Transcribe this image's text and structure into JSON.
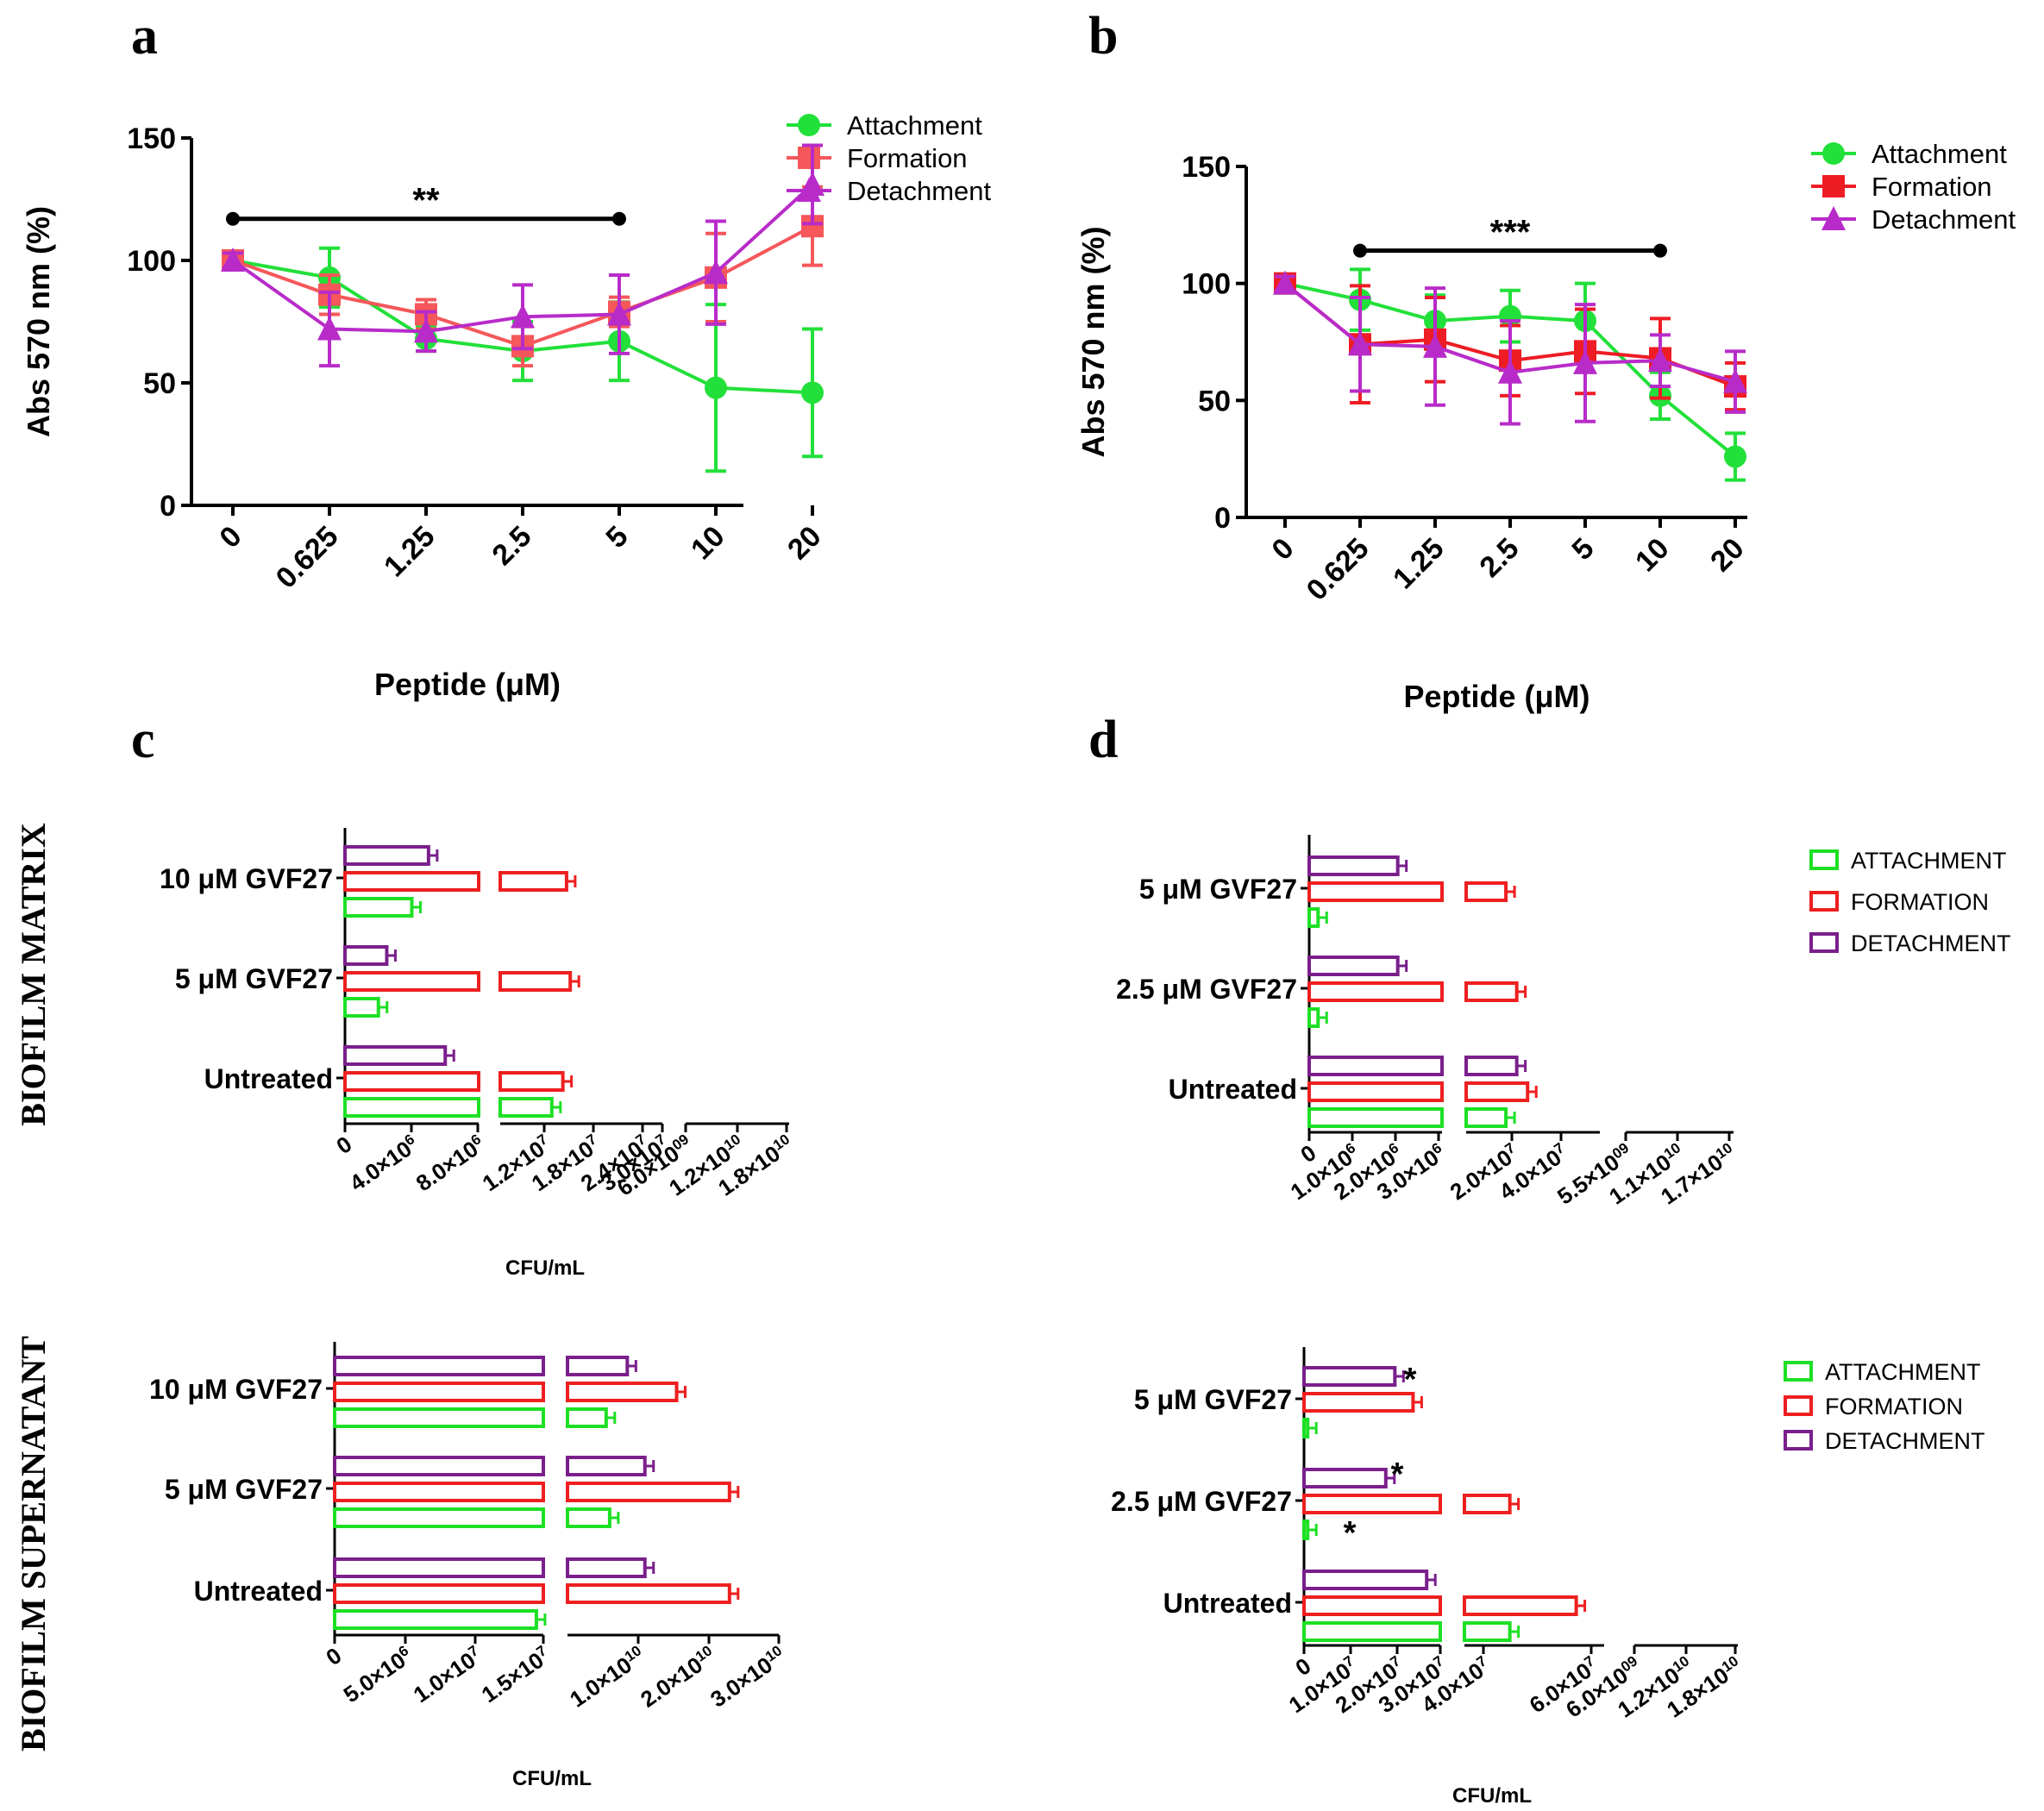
{
  "figure": {
    "panel_letters": [
      "a",
      "b",
      "c",
      "d"
    ],
    "side_labels": [
      "BIOFILM MATRIX",
      "BIOFILM SUPERNATANT"
    ],
    "colors": {
      "attachment": "#22e03a",
      "formation_a": "#f5575a",
      "formation_b": "#ee1c24",
      "detachment": "#b82bc9",
      "attachment_bar": "#1de024",
      "formation_bar": "#ee1f1f",
      "detachment_bar": "#7a1f8c"
    }
  },
  "chart_data": [
    {
      "id": "a",
      "type": "line",
      "title": "",
      "xlabel": "Peptide (μM)",
      "ylabel": "Abs 570 nm (%)",
      "categories": [
        "0",
        "0.625",
        "1.25",
        "2.5",
        "5",
        "10",
        "20"
      ],
      "ylim": [
        0,
        150
      ],
      "yticks": [
        "0",
        "50",
        "100",
        "150"
      ],
      "legend": "top-right",
      "series": [
        {
          "name": "Attachment",
          "marker": "circle",
          "values": [
            100,
            93,
            68,
            63,
            67,
            48,
            46
          ],
          "errors": [
            3,
            12,
            5,
            12,
            16,
            34,
            26
          ]
        },
        {
          "name": "Formation",
          "marker": "square",
          "values": [
            100,
            86,
            78,
            65,
            79,
            93,
            114
          ],
          "errors": [
            3,
            8,
            6,
            8,
            6,
            18,
            16
          ]
        },
        {
          "name": "Detachment",
          "marker": "triangle",
          "values": [
            100,
            72,
            71,
            77,
            78,
            95,
            131
          ],
          "errors": [
            3,
            15,
            8,
            13,
            16,
            21,
            16
          ]
        }
      ],
      "annotation": {
        "text": "**",
        "from": "0",
        "to": "5"
      }
    },
    {
      "id": "b",
      "type": "line",
      "title": "",
      "xlabel": "Peptide (μM)",
      "ylabel": "Abs 570 nm (%)",
      "categories": [
        "0",
        "0.625",
        "1.25",
        "2.5",
        "5",
        "10",
        "20"
      ],
      "ylim": [
        0,
        150
      ],
      "yticks": [
        "0",
        "50",
        "100",
        "150"
      ],
      "legend": "top-right",
      "series": [
        {
          "name": "Attachment",
          "marker": "circle",
          "values": [
            100,
            93,
            84,
            86,
            84,
            52,
            26
          ],
          "errors": [
            3,
            13,
            11,
            11,
            16,
            10,
            10
          ]
        },
        {
          "name": "Formation",
          "marker": "square",
          "values": [
            100,
            74,
            76,
            67,
            71,
            68,
            56
          ],
          "errors": [
            3,
            25,
            18,
            15,
            18,
            17,
            10
          ]
        },
        {
          "name": "Detachment",
          "marker": "triangle",
          "values": [
            100,
            74,
            73,
            62,
            66,
            67,
            58
          ],
          "errors": [
            3,
            20,
            25,
            22,
            25,
            11,
            13
          ]
        }
      ],
      "annotation": {
        "text": "***",
        "from": "0.625",
        "to": "10"
      }
    },
    {
      "id": "c-matrix",
      "type": "bar",
      "orientation": "horizontal",
      "xlabel": "CFU/mL",
      "categories": [
        "10 μM GVF27",
        "5 μM GVF27",
        "Untreated"
      ],
      "xticks": [
        [
          "0",
          "4.0×10^6",
          "8.0×10^6"
        ],
        [
          "1.2×10^7",
          "1.8×10^7",
          "2.4×10^7",
          "3.0×10^7"
        ],
        [
          "6.0×10^09",
          "1.2×10^10",
          "1.8×10^10"
        ]
      ],
      "series": [
        {
          "name": "DETACHMENT",
          "values": [
            5000000,
            2500000,
            6000000
          ]
        },
        {
          "name": "FORMATION",
          "values": [
            17000000,
            17500000,
            16500000
          ]
        },
        {
          "name": "ATTACHMENT",
          "values": [
            4000000,
            2000000,
            15000000
          ]
        }
      ]
    },
    {
      "id": "d-matrix",
      "type": "bar",
      "orientation": "horizontal",
      "xlabel": "",
      "categories": [
        "5 μM GVF27",
        "2.5 μM GVF27",
        "Untreated"
      ],
      "legend_entries": [
        "ATTACHMENT",
        "FORMATION",
        "DETACHMENT"
      ],
      "xticks": [
        [
          "0",
          "1.0×10^6",
          "2.0×10^6",
          "3.0×10^6"
        ],
        [
          "2.0×10^7",
          "4.0×10^7"
        ],
        [
          "5.5×10^09",
          "1.1×10^10",
          "1.7×10^10"
        ]
      ],
      "series": [
        {
          "name": "DETACHMENT",
          "values": [
            2000000,
            2000000,
            17000000
          ]
        },
        {
          "name": "FORMATION",
          "values": [
            14000000,
            17000000,
            20000000
          ]
        },
        {
          "name": "ATTACHMENT",
          "values": [
            200000,
            200000,
            14000000
          ]
        }
      ]
    },
    {
      "id": "c-supernatant",
      "type": "bar",
      "orientation": "horizontal",
      "xlabel": "CFU/mL",
      "categories": [
        "10 μM GVF27",
        "5 μM GVF27",
        "Untreated"
      ],
      "xticks": [
        [
          "0",
          "5.0×10^6",
          "1.0×10^7",
          "1.5×10^7"
        ],
        [
          "1.0×10^10",
          "2.0×10^10",
          "3.0×10^10"
        ]
      ],
      "series": [
        {
          "name": "DETACHMENT",
          "values": [
            8500000000,
            11000000000,
            11000000000
          ]
        },
        {
          "name": "FORMATION",
          "values": [
            15500000000,
            23000000000,
            23000000000
          ]
        },
        {
          "name": "ATTACHMENT",
          "values": [
            5500000000,
            6000000000,
            14500000
          ]
        }
      ]
    },
    {
      "id": "d-supernatant",
      "type": "bar",
      "orientation": "horizontal",
      "xlabel": "CFU/mL",
      "categories": [
        "5 μM GVF27",
        "2.5 μM GVF27",
        "Untreated"
      ],
      "legend_entries": [
        "ATTACHMENT",
        "FORMATION",
        "DETACHMENT"
      ],
      "annotations": [
        "*",
        "*",
        "*"
      ],
      "xticks": [
        [
          "0",
          "1.0×10^7",
          "2.0×10^7",
          "3.0×10^7"
        ],
        [
          "4.0×10^7",
          "6.0×10^7"
        ],
        [
          "6.0×10^09",
          "1.2×10^10",
          "1.8×10^10"
        ]
      ],
      "series": [
        {
          "name": "DETACHMENT",
          "values": [
            20000000,
            18000000,
            27000000
          ]
        },
        {
          "name": "FORMATION",
          "values": [
            24000000,
            43000000,
            62000000
          ]
        },
        {
          "name": "ATTACHMENT",
          "values": [
            800000,
            800000,
            43000000
          ]
        }
      ]
    }
  ]
}
